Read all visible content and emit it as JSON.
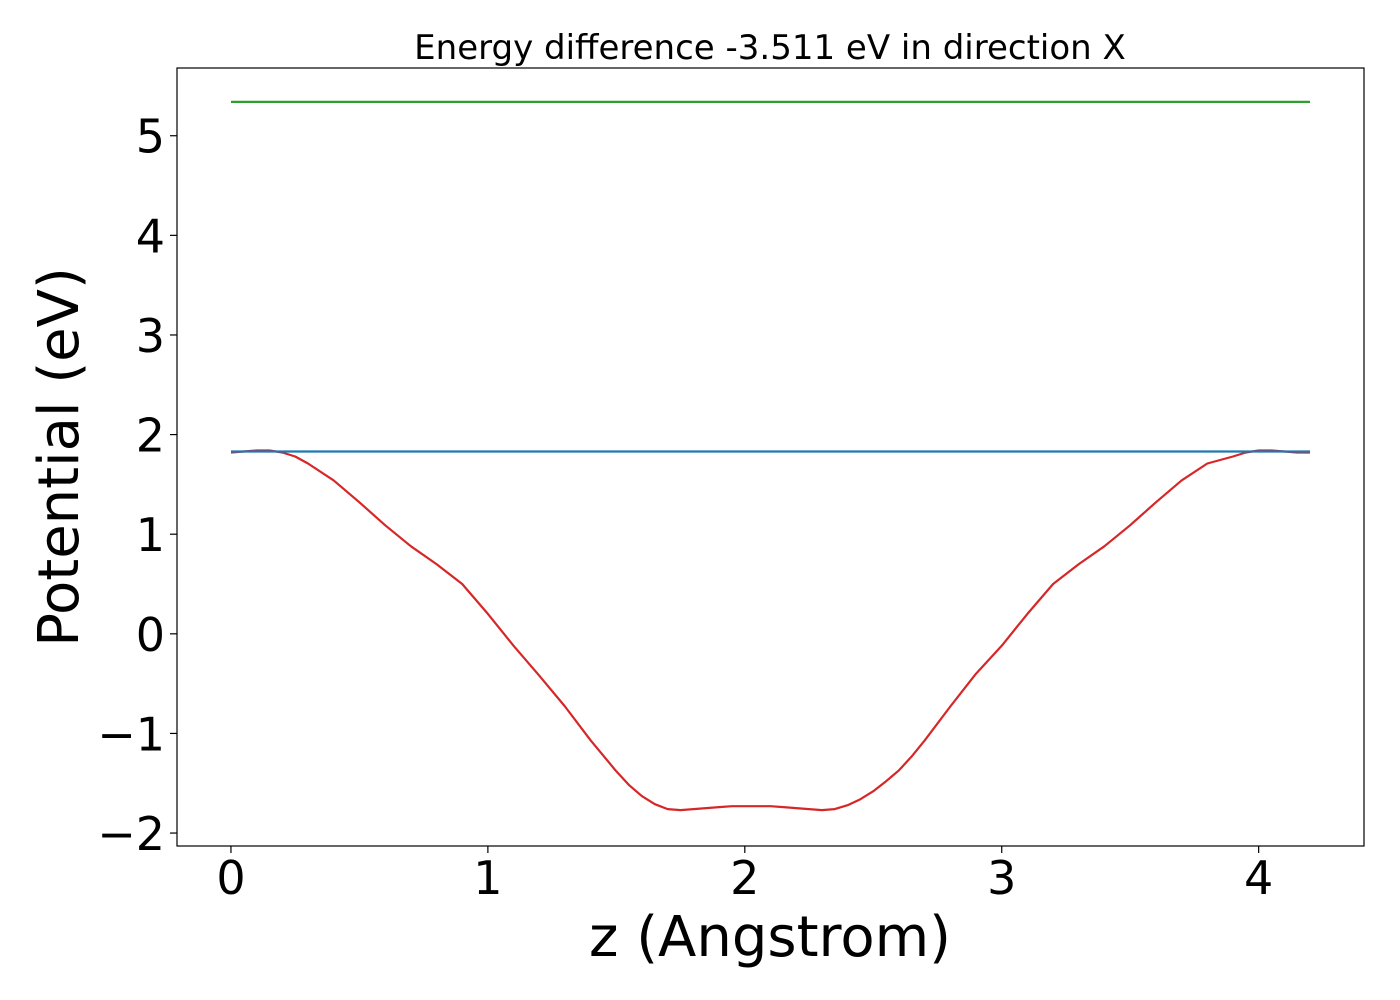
{
  "chart_data": {
    "type": "line",
    "title": "Energy difference -3.511 eV in direction X",
    "xlabel": "z (Angstrom)",
    "ylabel": "Potential (eV)",
    "xlim": [
      -0.21,
      4.41
    ],
    "ylim": [
      -2.13,
      5.68
    ],
    "xticks": [
      0,
      1,
      2,
      3,
      4
    ],
    "yticks": [
      -2,
      -1,
      0,
      1,
      2,
      3,
      4,
      5
    ],
    "xtick_labels": [
      "0",
      "1",
      "2",
      "3",
      "4"
    ],
    "ytick_labels": [
      "−2",
      "−1",
      "0",
      "1",
      "2",
      "3",
      "4",
      "5"
    ],
    "grid": false,
    "legend": false,
    "series": [
      {
        "color": "#d62728",
        "x": [
          0,
          0.05,
          0.1,
          0.15,
          0.2,
          0.25,
          0.3,
          0.4,
          0.5,
          0.6,
          0.7,
          0.8,
          0.9,
          1.0,
          1.1,
          1.2,
          1.3,
          1.4,
          1.5,
          1.55,
          1.6,
          1.65,
          1.7,
          1.75,
          1.8,
          1.85,
          1.9,
          1.95,
          2.0,
          2.05,
          2.1,
          2.15,
          2.2,
          2.25,
          2.3,
          2.35,
          2.4,
          2.45,
          2.5,
          2.55,
          2.6,
          2.65,
          2.7,
          2.8,
          2.9,
          3.0,
          3.1,
          3.2,
          3.3,
          3.4,
          3.5,
          3.6,
          3.7,
          3.8,
          3.9,
          3.95,
          4.0,
          4.05,
          4.1,
          4.15,
          4.2
        ],
        "values": [
          1.82,
          1.83,
          1.84,
          1.84,
          1.82,
          1.78,
          1.71,
          1.54,
          1.32,
          1.09,
          0.88,
          0.7,
          0.5,
          0.2,
          -0.12,
          -0.42,
          -0.73,
          -1.07,
          -1.38,
          -1.52,
          -1.63,
          -1.71,
          -1.76,
          -1.77,
          -1.76,
          -1.75,
          -1.74,
          -1.73,
          -1.73,
          -1.73,
          -1.73,
          -1.74,
          -1.75,
          -1.76,
          -1.77,
          -1.76,
          -1.72,
          -1.66,
          -1.58,
          -1.48,
          -1.37,
          -1.23,
          -1.07,
          -0.73,
          -0.4,
          -0.12,
          0.2,
          0.5,
          0.7,
          0.88,
          1.09,
          1.32,
          1.54,
          1.71,
          1.78,
          1.82,
          1.84,
          1.84,
          1.83,
          1.82,
          1.82
        ]
      },
      {
        "color": "#1f77b4",
        "x": [
          0,
          4.2
        ],
        "values": [
          1.83,
          1.83
        ]
      },
      {
        "color": "#2ca02c",
        "x": [
          0,
          4.2
        ],
        "values": [
          5.34,
          5.34
        ]
      }
    ]
  }
}
